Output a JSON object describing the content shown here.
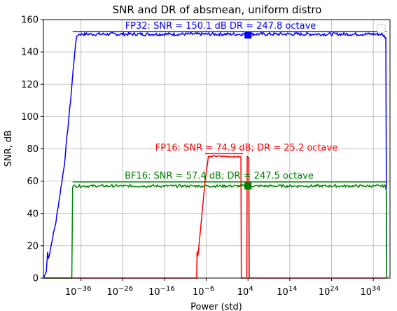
{
  "chart_data": {
    "type": "line",
    "title": "SNR and DR of absmean, uniform distro",
    "xlabel": "Power (std)",
    "ylabel": "SNR, dB",
    "xscale": "log",
    "xlim_exp": [
      -45,
      38
    ],
    "ylim": [
      0,
      160
    ],
    "grid": true,
    "xticks": [
      {
        "exp": -36,
        "label": "10",
        "sup": "−36"
      },
      {
        "exp": -26,
        "label": "10",
        "sup": "−26"
      },
      {
        "exp": -16,
        "label": "10",
        "sup": "−16"
      },
      {
        "exp": -6,
        "label": "10",
        "sup": "−6"
      },
      {
        "exp": 4,
        "label": "10",
        "sup": "4"
      },
      {
        "exp": 14,
        "label": "10",
        "sup": "14"
      },
      {
        "exp": 24,
        "label": "10",
        "sup": "24"
      },
      {
        "exp": 34,
        "label": "10",
        "sup": "34"
      }
    ],
    "yticks": [
      0,
      20,
      40,
      60,
      80,
      100,
      120,
      140,
      160
    ],
    "series": [
      {
        "key": "fp32",
        "color": "#0000ff",
        "annotation": "FP32: SNR = 150.1 dB  DR = 247.8 octave",
        "snr_db": 150.1,
        "dr_octave": 247.8,
        "ref_line": {
          "x_exp": [
            -38,
            37.2
          ],
          "y": 152.5
        },
        "points": [
          [
            -45,
            0
          ],
          [
            -44.3,
            4
          ],
          [
            -44,
            16
          ],
          [
            -43.8,
            12
          ],
          [
            -42,
            35
          ],
          [
            -40,
            70
          ],
          [
            -38.5,
            110
          ],
          [
            -37.5,
            140
          ],
          [
            -37,
            150
          ],
          [
            -36.5,
            151
          ],
          [
            36,
            151
          ],
          [
            37,
            149
          ],
          [
            37.2,
            2
          ],
          [
            37.25,
            0
          ]
        ],
        "noise_amp": 1.0,
        "marker": {
          "x_exp": 4,
          "y": 150.5
        }
      },
      {
        "key": "fp16",
        "color": "#ff0000",
        "annotation": "FP16: SNR = 74.9 dB; DR = 25.2 octave",
        "snr_db": 74.9,
        "dr_octave": 25.2,
        "ref_line": {
          "x_exp": [
            -6.3,
            2.8
          ],
          "y": 77
        },
        "points": [
          [
            -45,
            0
          ],
          [
            -8.3,
            0
          ],
          [
            -8.2,
            16
          ],
          [
            -8,
            14
          ],
          [
            -7.2,
            35
          ],
          [
            -6.3,
            60
          ],
          [
            -5.5,
            75
          ],
          [
            -4,
            75.5
          ],
          [
            2.3,
            75
          ],
          [
            2.4,
            0
          ],
          [
            3.7,
            0
          ],
          [
            3.8,
            75
          ],
          [
            4.2,
            75
          ],
          [
            4.3,
            0
          ],
          [
            37.2,
            0
          ]
        ],
        "noise_amp": 0.4
      },
      {
        "key": "bf16",
        "color": "#008000",
        "annotation": "BF16: SNR = 57.4 dB; DR = 247.5 octave",
        "snr_db": 57.4,
        "dr_octave": 247.5,
        "ref_line": {
          "x_exp": [
            -38,
            37.2
          ],
          "y": 59.5
        },
        "points": [
          [
            -45,
            0
          ],
          [
            -38.2,
            0
          ],
          [
            -38,
            57
          ],
          [
            36.8,
            57
          ],
          [
            37.1,
            54
          ],
          [
            37.2,
            0
          ]
        ],
        "noise_amp": 0.8,
        "marker": {
          "x_exp": 4,
          "y": 57
        }
      }
    ],
    "legend": {
      "placement": "top-right",
      "entries": []
    }
  }
}
